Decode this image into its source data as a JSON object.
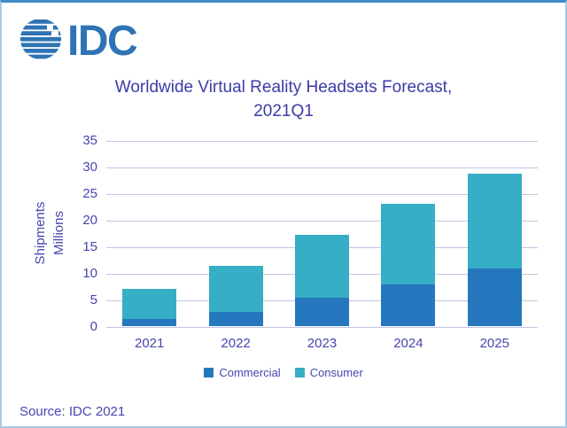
{
  "logo": {
    "text": "IDC",
    "color": "#2E74B5"
  },
  "title": {
    "line1": "Worldwide Virtual Reality Headsets Forecast,",
    "line2": "2021Q1"
  },
  "y_axis": {
    "title_line1": "Shipments",
    "title_line2": "Millions"
  },
  "source": "Source: IDC 2021",
  "colors": {
    "commercial": "#2577BE",
    "consumer": "#36AEC5",
    "text_indigo": "#4646AE",
    "title_indigo": "#3B3BA8",
    "gridline": "#C4C4E6",
    "logo_blue": "#2E74B5",
    "frame_border": "#A4C9E6",
    "frame_border_top": "#4289C7"
  },
  "chart_data": {
    "type": "bar",
    "stacked": true,
    "title": "Worldwide Virtual Reality Headsets Forecast, 2021Q1",
    "categories": [
      "2021",
      "2022",
      "2023",
      "2024",
      "2025"
    ],
    "series": [
      {
        "name": "Commercial",
        "color": "#2577BE",
        "values": [
          1.4,
          2.7,
          5.3,
          7.8,
          10.9
        ]
      },
      {
        "name": "Consumer",
        "color": "#36AEC5",
        "values": [
          5.6,
          8.7,
          11.9,
          15.2,
          17.7
        ]
      }
    ],
    "totals": [
      7.0,
      11.4,
      17.2,
      23.0,
      28.6
    ],
    "ylabel": "Shipments Millions",
    "ylim": [
      0,
      35
    ],
    "ytick_step": 5,
    "grid": true,
    "legend_position": "bottom"
  }
}
